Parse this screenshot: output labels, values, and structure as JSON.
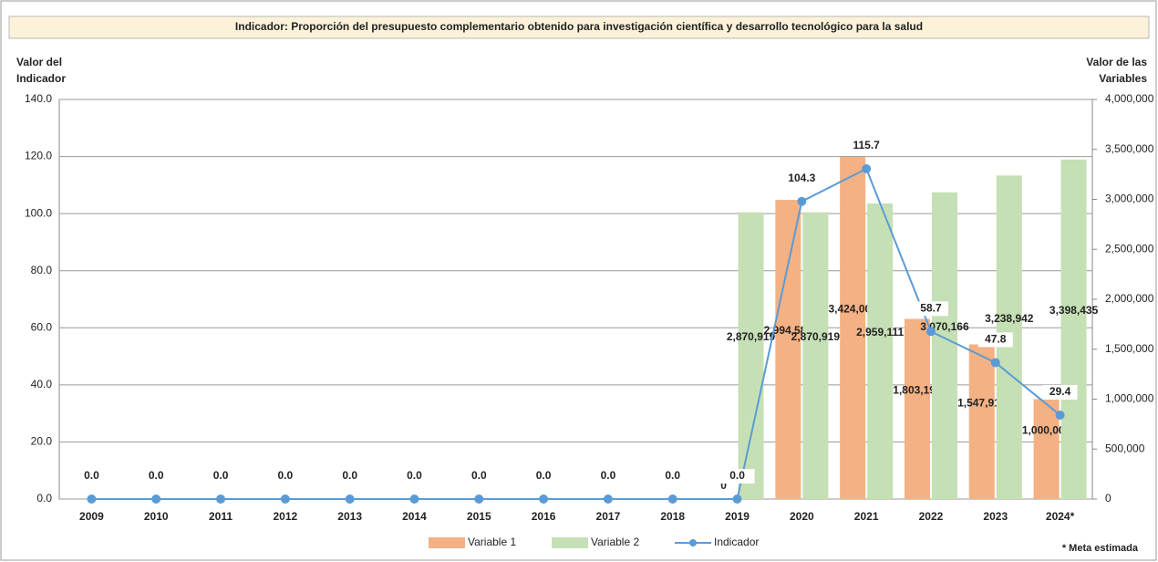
{
  "chart_data": {
    "type": "combo",
    "title": "Indicador: Proporción del presupuesto complementario obtenido para investigación científica y desarrollo tecnológico para la salud",
    "ylabel": [
      "Valor del",
      "Indicador"
    ],
    "y2label": [
      "Valor de las",
      "Variables"
    ],
    "note": "* Meta estimada",
    "categories": [
      "2009",
      "2010",
      "2011",
      "2012",
      "2013",
      "2014",
      "2015",
      "2016",
      "2017",
      "2018",
      "2019",
      "2020",
      "2021",
      "2022",
      "2023",
      "2024*"
    ],
    "ylim": [
      0,
      140
    ],
    "yticks": [
      {
        "value": 0,
        "label": "0.0"
      },
      {
        "value": 20,
        "label": "20.0"
      },
      {
        "value": 40,
        "label": "40.0"
      },
      {
        "value": 60,
        "label": "60.0"
      },
      {
        "value": 80,
        "label": "80.0"
      },
      {
        "value": 100,
        "label": "100.0"
      },
      {
        "value": 120,
        "label": "120.0"
      },
      {
        "value": 140,
        "label": "140.0"
      }
    ],
    "y2lim": [
      0,
      4000000
    ],
    "y2ticks": [
      0,
      {
        "value": 500000,
        "label": "500,000"
      },
      {
        "value": 1000000,
        "label": "1,000,000"
      },
      {
        "value": 1500000,
        "label": "1,500,000"
      },
      {
        "value": 2000000,
        "label": "2,000,000"
      },
      {
        "value": 2500000,
        "label": "2,500,000"
      },
      {
        "value": 3000000,
        "label": "3,000,000"
      },
      {
        "value": 3500000,
        "label": "3,500,000"
      },
      {
        "value": 4000000,
        "label": "4,000,000"
      }
    ],
    "grid": true,
    "legend": "bottom",
    "series": [
      {
        "name": "Variable 1",
        "type": "bar",
        "axis": "y2",
        "color": "#f4b183",
        "values": [
          null,
          null,
          null,
          null,
          null,
          null,
          null,
          null,
          null,
          null,
          0,
          2994585,
          3424000,
          1803191,
          1547918,
          1000000
        ],
        "value_labels": [
          null,
          null,
          null,
          null,
          null,
          null,
          null,
          null,
          null,
          null,
          "0",
          "2,994,585",
          "3,424,000",
          "1,803,191",
          "1,547,918",
          "1,000,000"
        ]
      },
      {
        "name": "Variable 2",
        "type": "bar",
        "axis": "y2",
        "color": "#c5e0b4",
        "values": [
          null,
          null,
          null,
          null,
          null,
          null,
          null,
          null,
          null,
          null,
          2870919,
          2870919,
          2959111,
          3070166,
          3238942,
          3398435
        ],
        "value_labels": [
          null,
          null,
          null,
          null,
          null,
          null,
          null,
          null,
          null,
          null,
          "2,870,919",
          "2,870,919",
          "2,959,111",
          "3,070,166",
          "3,238,942",
          "3,398,435"
        ]
      },
      {
        "name": "Indicador",
        "type": "line",
        "axis": "y",
        "color": "#5b9bd5",
        "values": [
          0,
          0,
          0,
          0,
          0,
          0,
          0,
          0,
          0,
          0,
          0,
          104.3,
          115.7,
          58.7,
          47.8,
          29.4
        ],
        "value_labels": [
          "0.0",
          "0.0",
          "0.0",
          "0.0",
          "0.0",
          "0.0",
          "0.0",
          "0.0",
          "0.0",
          "0.0",
          "0.0",
          "104.3",
          "115.7",
          "58.7",
          "47.8",
          "29.4"
        ]
      }
    ]
  }
}
